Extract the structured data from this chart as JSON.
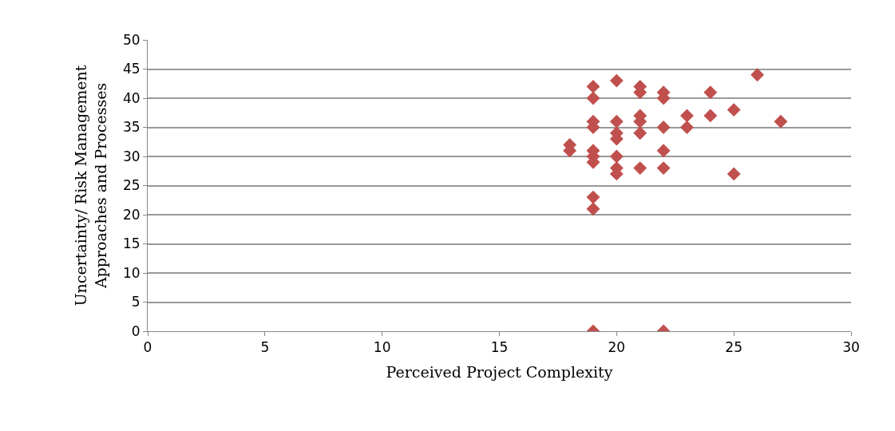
{
  "chart_data": {
    "type": "scatter",
    "xlabel": "Perceived Project Complexity",
    "ylabel": "Uncertainty/ Risk Management\nApproaches and Processes",
    "x": [
      18,
      18,
      19,
      19,
      19,
      19,
      19,
      19,
      19,
      19,
      19,
      19,
      20,
      20,
      20,
      20,
      20,
      20,
      20,
      21,
      21,
      21,
      21,
      21,
      21,
      22,
      22,
      22,
      22,
      22,
      22,
      23,
      23,
      24,
      24,
      25,
      25,
      26,
      27
    ],
    "values": [
      32,
      31,
      42,
      40,
      36,
      35,
      31,
      30,
      29,
      23,
      21,
      0,
      43,
      36,
      34,
      33,
      30,
      28,
      27,
      42,
      41,
      37,
      36,
      34,
      28,
      41,
      40,
      35,
      31,
      28,
      0,
      37,
      35,
      41,
      37,
      38,
      27,
      44,
      36
    ],
    "color": "#c0504d",
    "marker": "diamond",
    "xlim": [
      0,
      30
    ],
    "xticks": [
      0,
      5,
      10,
      15,
      20,
      25,
      30
    ],
    "ylim": [
      0,
      50
    ],
    "yticks": [
      0,
      5,
      10,
      15,
      20,
      25,
      30,
      35,
      40,
      45,
      50
    ],
    "grid": "y",
    "legend": false
  }
}
